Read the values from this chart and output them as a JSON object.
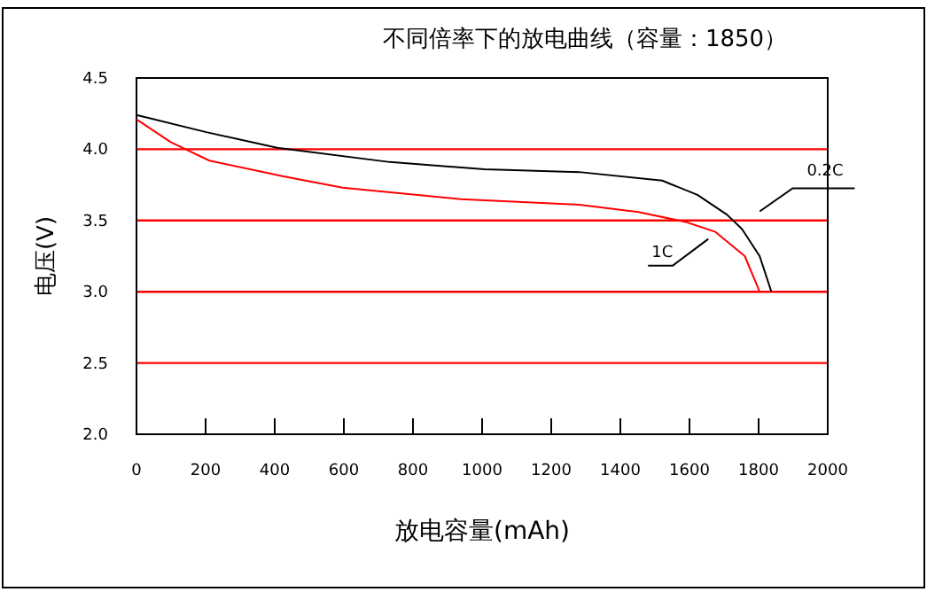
{
  "chart_data": {
    "type": "line",
    "title": "不同倍率下的放电曲线（容量：1850）",
    "xlabel": "放电容量(mAh)",
    "ylabel": "电压(V)",
    "xlim": [
      0,
      2000
    ],
    "xticks": [
      0,
      200,
      400,
      600,
      800,
      1000,
      1200,
      1400,
      1600,
      1800,
      2000
    ],
    "ylim": [
      2.0,
      4.5
    ],
    "yticks": [
      {
        "value": 2,
        "label": "2.0"
      },
      {
        "value": 2.5,
        "label": "2.5"
      },
      {
        "value": 3,
        "label": "3.0"
      },
      {
        "value": 3.5,
        "label": "3.5"
      },
      {
        "value": 4,
        "label": "4.0"
      },
      {
        "value": 4.5,
        "label": "4.5"
      }
    ],
    "grid": "y",
    "marker": "none",
    "line_style": "solid",
    "series": [
      {
        "name": "0.2C",
        "color": "#000000",
        "x": [
          0,
          202,
          407,
          733,
          1007,
          1281,
          1521,
          1623,
          1709,
          1752,
          1803,
          1837
        ],
        "values": [
          4.24,
          4.12,
          4.01,
          3.91,
          3.86,
          3.84,
          3.78,
          3.68,
          3.54,
          3.44,
          3.25,
          3.0
        ]
      },
      {
        "name": "1C",
        "color": "#ff0000",
        "x": [
          0,
          99,
          211,
          425,
          596,
          938,
          1281,
          1452,
          1589,
          1675,
          1760,
          1803
        ],
        "values": [
          4.21,
          4.05,
          3.92,
          3.81,
          3.73,
          3.65,
          3.61,
          3.56,
          3.49,
          3.42,
          3.25,
          3.0
        ]
      }
    ]
  }
}
